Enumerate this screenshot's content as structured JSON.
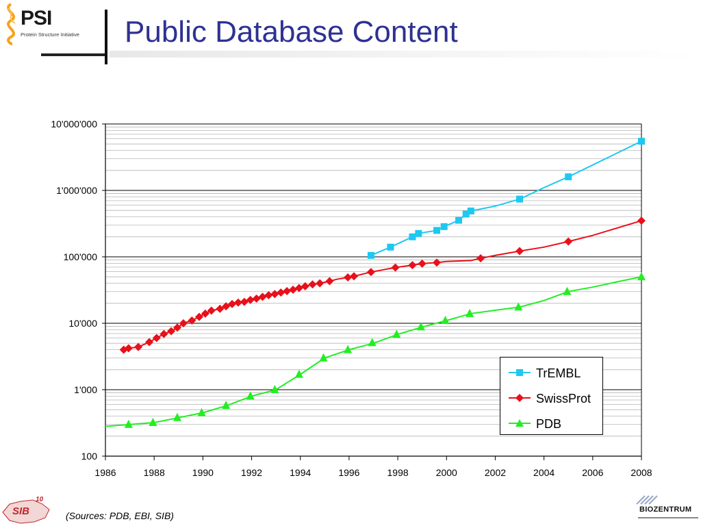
{
  "header": {
    "title": "Public Database Content",
    "logo_text": "PSI",
    "logo_subtitle": "Protein Structure Initiative"
  },
  "footer": {
    "source_note": "(Sources: PDB, EBI, SIB)",
    "left_logo_text": "SIB",
    "left_logo_badge": "10",
    "right_logo_text": "BIOZENTRUM"
  },
  "chart_data": {
    "type": "line",
    "title": "",
    "xlabel": "",
    "ylabel": "",
    "x_scale": "linear",
    "y_scale": "log",
    "xlim": [
      1986,
      2008
    ],
    "ylim": [
      100,
      10000000
    ],
    "grid": "horizontal (major and minor)",
    "legend_position": "bottom-right",
    "x_ticks": [
      "1986",
      "1988",
      "1990",
      "1992",
      "1994",
      "1996",
      "1998",
      "2000",
      "2002",
      "2004",
      "2006",
      "2008"
    ],
    "y_ticks": [
      "100",
      "1'000",
      "10'000",
      "100'000",
      "1'000'000",
      "10'000'000"
    ],
    "series": [
      {
        "name": "TrEMBL",
        "color": "#1ec8f0",
        "marker": "square",
        "line_x": [
          1996.9,
          1997.7,
          1998.6,
          1998.85,
          1999.6,
          1999.9,
          2000.5,
          2000.8,
          2001.0,
          2002.0,
          2003.0,
          2004.0,
          2005.0,
          2008.0
        ],
        "line_y": [
          105000,
          140000,
          200000,
          225000,
          250000,
          285000,
          355000,
          440000,
          490000,
          580000,
          740000,
          1100000,
          1600000,
          5500000
        ],
        "marker_x": [
          1996.9,
          1997.7,
          1998.6,
          1998.85,
          1999.6,
          1999.9,
          2000.5,
          2000.8,
          2001.0,
          2003.0,
          2005.0,
          2008.0
        ],
        "marker_y": [
          105000,
          140000,
          200000,
          225000,
          250000,
          285000,
          355000,
          440000,
          490000,
          740000,
          1600000,
          5500000
        ]
      },
      {
        "name": "SwissProt",
        "color": "#e8101a",
        "marker": "diamond",
        "line_x": [
          1986.75,
          1986.95,
          1987.35,
          1987.8,
          1988.1,
          1988.4,
          1988.7,
          1988.95,
          1989.2,
          1989.55,
          1989.85,
          1990.1,
          1990.35,
          1990.7,
          1990.95,
          1991.2,
          1991.45,
          1991.7,
          1991.95,
          1992.2,
          1992.45,
          1992.7,
          1992.95,
          1993.2,
          1993.45,
          1993.7,
          1993.95,
          1994.2,
          1994.5,
          1994.8,
          1995.2,
          1995.5,
          1995.95,
          1996.2,
          1996.9,
          1997.9,
          1998.6,
          1999.0,
          1999.6,
          2000.0,
          2001.0,
          2001.4,
          2002.0,
          2003.0,
          2004.0,
          2005.0,
          2006.0,
          2008.0
        ],
        "line_y": [
          4000,
          4200,
          4400,
          5200,
          6000,
          6900,
          7600,
          8600,
          10000,
          11000,
          12500,
          14000,
          15500,
          16500,
          18000,
          19500,
          20500,
          21000,
          22500,
          23500,
          25000,
          26500,
          27500,
          29000,
          30500,
          32000,
          34000,
          36000,
          38500,
          40000,
          43000,
          46000,
          49000,
          51000,
          59000,
          69000,
          75000,
          79000,
          82000,
          85000,
          88000,
          95000,
          105000,
          122000,
          140000,
          170000,
          210000,
          350000
        ],
        "marker_x": [
          1986.75,
          1986.95,
          1987.35,
          1987.8,
          1988.1,
          1988.4,
          1988.7,
          1988.95,
          1989.2,
          1989.55,
          1989.85,
          1990.1,
          1990.35,
          1990.7,
          1990.95,
          1991.2,
          1991.45,
          1991.7,
          1991.95,
          1992.2,
          1992.45,
          1992.7,
          1992.95,
          1993.2,
          1993.45,
          1993.7,
          1993.95,
          1994.2,
          1994.5,
          1994.8,
          1995.2,
          1995.95,
          1996.2,
          1996.9,
          1997.9,
          1998.6,
          1999.0,
          1999.6,
          2001.4,
          2003.0,
          2005.0,
          2008.0
        ],
        "marker_y": [
          4000,
          4200,
          4400,
          5200,
          6000,
          6900,
          7600,
          8600,
          10000,
          11000,
          12500,
          14000,
          15500,
          16500,
          18000,
          19500,
          20500,
          21000,
          22500,
          23500,
          25000,
          26500,
          27500,
          29000,
          30500,
          32000,
          34000,
          36000,
          38500,
          40000,
          43000,
          49000,
          51000,
          59000,
          69000,
          75000,
          79000,
          82000,
          95000,
          122000,
          170000,
          350000
        ]
      },
      {
        "name": "PDB",
        "color": "#22ee22",
        "marker": "triangle",
        "line_x": [
          1986.0,
          1987.0,
          1988.0,
          1989.0,
          1990.0,
          1991.0,
          1992.0,
          1993.0,
          1994.0,
          1995.0,
          1996.0,
          1997.0,
          1998.0,
          1999.0,
          2000.0,
          2001.0,
          2002.0,
          2003.0,
          2004.0,
          2005.0,
          2006.0,
          2007.0,
          2008.0
        ],
        "line_y": [
          280,
          300,
          320,
          380,
          450,
          580,
          800,
          1000,
          1700,
          3000,
          4000,
          5000,
          6800,
          8800,
          11000,
          14000,
          15700,
          17500,
          22000,
          30000,
          35000,
          42000,
          50000
        ],
        "marker_x": [
          1986.95,
          1987.95,
          1988.95,
          1989.95,
          1990.95,
          1991.95,
          1992.95,
          1993.95,
          1994.95,
          1995.95,
          1996.95,
          1997.95,
          1998.95,
          1999.95,
          2000.95,
          2002.95,
          2004.95,
          2008.0
        ],
        "marker_y": [
          300,
          320,
          380,
          450,
          580,
          800,
          1000,
          1700,
          3000,
          4000,
          5100,
          6800,
          8800,
          11000,
          14000,
          17500,
          30000,
          50000
        ]
      }
    ]
  }
}
